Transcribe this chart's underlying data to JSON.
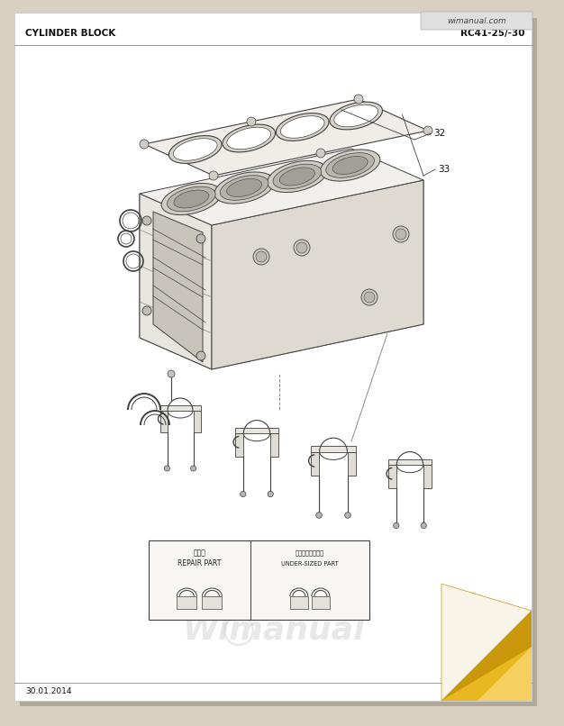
{
  "page_bg": "#d8d0c0",
  "paper_bg": "#ffffff",
  "paper_shadow": "#b0a898",
  "header_left": "CYLINDER BLOCK",
  "header_right": "RC41-25/-30",
  "watermark_badge": "wimanual.com",
  "footer_date": "30.01.2014",
  "wm_text": "Wimanual",
  "label_32": "32",
  "label_33": "33",
  "legend_jp1": "標準品",
  "legend_repair": "REPAIR PART",
  "legend_jp2": "アンダーサイズ品",
  "legend_under": "UNDER-SIZED PART",
  "lc": "#404040",
  "lc_light": "#888888",
  "face_top": "#f2f0ec",
  "face_left": "#e8e5df",
  "face_right": "#dedad2",
  "face_bottom": "#d0ccc4",
  "face_inner": "#ccc8c0",
  "gold1": "#c8980a",
  "gold2": "#e8b820",
  "gold3": "#f5d060",
  "curl_paper": "#f8f4e8"
}
